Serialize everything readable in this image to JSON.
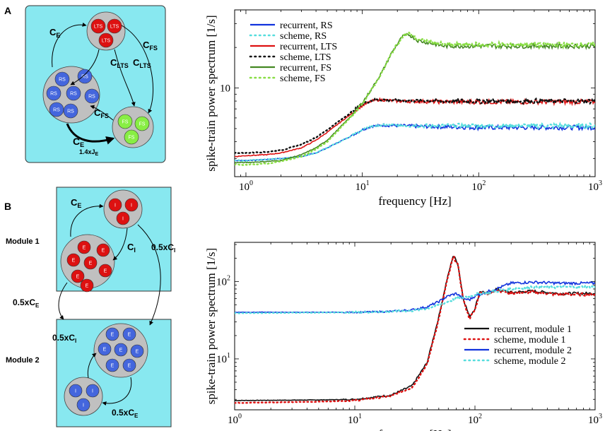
{
  "panel_a": {
    "letter": "A",
    "groups": {
      "lts": {
        "label": "LTS",
        "count": 3
      },
      "rs": {
        "label": "RS",
        "count": 7
      },
      "fs": {
        "label": "FS",
        "count": 3
      }
    },
    "conn": {
      "ce_top": "C",
      "ce_top_sub": "E",
      "cfs_right": "C",
      "cfs_right_sub": "FS",
      "clts_a": "C",
      "clts_a_sub": "LTS",
      "clts_b": "C",
      "clts_b_sub": "LTS",
      "cfs_mid": "C",
      "cfs_mid_sub": "FS",
      "ce_bottom": "C",
      "ce_bottom_sub": "E",
      "je": "1.4xJ",
      "je_sub": "E"
    }
  },
  "panel_b": {
    "letter": "B",
    "module1_label": "Module 1",
    "module2_label": "Module 2",
    "inh_label": "I",
    "exc_label": "E",
    "conn": {
      "ce": "C",
      "ce_sub": "E",
      "ci": "C",
      "ci_sub": "I",
      "half_ci_right": "0.5xC",
      "half_ci_right_sub": "I",
      "half_ce_left": "0.5xC",
      "half_ce_left_sub": "E",
      "half_ci_m2": "0.5xC",
      "half_ci_m2_sub": "I",
      "half_ce_m2": "0.5xC",
      "half_ce_m2_sub": "E"
    }
  },
  "colors": {
    "cyan_panel": "#88e8f0",
    "gray_group": "#c0c0c0",
    "red_node": "#dd1111",
    "blue_node": "#4466dd",
    "green_node": "#88ee44"
  },
  "chart_data": [
    {
      "type": "line",
      "xscale": "log",
      "yscale": "log",
      "xlim": [
        0.8,
        1000
      ],
      "ylim": [
        2.2,
        38
      ],
      "xlabel": "frequency [Hz]",
      "ylabel": "spike-train power spectrum [1/s]",
      "xticks": [
        {
          "v": 1,
          "b": "10",
          "e": "0"
        },
        {
          "v": 10,
          "b": "10",
          "e": "1"
        },
        {
          "v": 100,
          "b": "10",
          "e": "2"
        },
        {
          "v": 1000,
          "b": "10",
          "e": "3"
        }
      ],
      "yticks": [
        {
          "v": 10,
          "label": "10"
        }
      ],
      "legend_position": "top-left",
      "series": [
        {
          "name": "recurrent, RS",
          "color": "#1133dd",
          "style": "solid",
          "pts": [
            [
              0.8,
              2.9
            ],
            [
              1,
              2.9
            ],
            [
              1.5,
              2.95
            ],
            [
              2,
              3.0
            ],
            [
              3,
              3.1
            ],
            [
              4,
              3.3
            ],
            [
              5,
              3.6
            ],
            [
              6,
              3.9
            ],
            [
              8,
              4.4
            ],
            [
              10,
              4.9
            ],
            [
              12,
              5.2
            ],
            [
              15,
              5.3
            ],
            [
              30,
              5.2
            ],
            [
              100,
              5.1
            ],
            [
              1000,
              5.1
            ]
          ]
        },
        {
          "name": "scheme, RS",
          "color": "#55dddd",
          "style": "dotted",
          "pts": [
            [
              0.8,
              2.9
            ],
            [
              1,
              2.9
            ],
            [
              1.5,
              2.95
            ],
            [
              2,
              3.0
            ],
            [
              3,
              3.1
            ],
            [
              4,
              3.3
            ],
            [
              5,
              3.6
            ],
            [
              6,
              3.9
            ],
            [
              8,
              4.4
            ],
            [
              10,
              4.9
            ],
            [
              12,
              5.2
            ],
            [
              15,
              5.3
            ],
            [
              30,
              5.25
            ],
            [
              100,
              5.25
            ],
            [
              1000,
              5.25
            ]
          ]
        },
        {
          "name": "recurrent, LTS",
          "color": "#dd1111",
          "style": "solid",
          "pts": [
            [
              0.8,
              3.1
            ],
            [
              1,
              3.15
            ],
            [
              1.5,
              3.2
            ],
            [
              2,
              3.3
            ],
            [
              3,
              3.6
            ],
            [
              4,
              4.1
            ],
            [
              5,
              4.7
            ],
            [
              6,
              5.3
            ],
            [
              8,
              6.4
            ],
            [
              10,
              7.4
            ],
            [
              12,
              8.0
            ],
            [
              14,
              8.2
            ],
            [
              20,
              8.0
            ],
            [
              50,
              7.9
            ],
            [
              1000,
              7.9
            ]
          ]
        },
        {
          "name": "scheme, LTS",
          "color": "#111111",
          "style": "dotted",
          "pts": [
            [
              0.8,
              3.3
            ],
            [
              1,
              3.3
            ],
            [
              1.5,
              3.35
            ],
            [
              2,
              3.45
            ],
            [
              3,
              3.8
            ],
            [
              4,
              4.3
            ],
            [
              5,
              4.9
            ],
            [
              6,
              5.5
            ],
            [
              8,
              6.6
            ],
            [
              10,
              7.6
            ],
            [
              12,
              8.1
            ],
            [
              14,
              8.2
            ],
            [
              20,
              8.1
            ],
            [
              50,
              8.0
            ],
            [
              1000,
              8.0
            ]
          ]
        },
        {
          "name": "recurrent, FS",
          "color": "#448822",
          "style": "solid",
          "pts": [
            [
              0.8,
              2.8
            ],
            [
              1,
              2.8
            ],
            [
              1.5,
              2.85
            ],
            [
              2,
              2.9
            ],
            [
              3,
              3.2
            ],
            [
              4,
              3.6
            ],
            [
              5,
              4.1
            ],
            [
              6,
              4.8
            ],
            [
              8,
              6.2
            ],
            [
              10,
              7.8
            ],
            [
              12,
              9.8
            ],
            [
              15,
              13.5
            ],
            [
              18,
              18.5
            ],
            [
              22,
              24
            ],
            [
              25,
              25
            ],
            [
              30,
              22.5
            ],
            [
              50,
              20.5
            ],
            [
              100,
              20.5
            ],
            [
              1000,
              20.5
            ]
          ]
        },
        {
          "name": "scheme, FS",
          "color": "#88dd44",
          "style": "dotted",
          "pts": [
            [
              0.8,
              2.7
            ],
            [
              1,
              2.7
            ],
            [
              1.5,
              2.75
            ],
            [
              2,
              2.85
            ],
            [
              3,
              3.1
            ],
            [
              4,
              3.5
            ],
            [
              5,
              4.0
            ],
            [
              6,
              4.7
            ],
            [
              8,
              6.1
            ],
            [
              10,
              7.7
            ],
            [
              12,
              9.7
            ],
            [
              15,
              13.4
            ],
            [
              18,
              18.4
            ],
            [
              22,
              24
            ],
            [
              25,
              25.5
            ],
            [
              30,
              23
            ],
            [
              50,
              21
            ],
            [
              100,
              21
            ],
            [
              1000,
              21
            ]
          ]
        }
      ]
    },
    {
      "type": "line",
      "xscale": "log",
      "yscale": "log",
      "xlim": [
        1,
        1000
      ],
      "ylim": [
        2.2,
        320
      ],
      "xlabel": "frequency [Hz]",
      "ylabel": "spike-train power spectrum [1/s]",
      "xticks": [
        {
          "v": 1,
          "b": "10",
          "e": "0"
        },
        {
          "v": 10,
          "b": "10",
          "e": "1"
        },
        {
          "v": 100,
          "b": "10",
          "e": "2"
        },
        {
          "v": 1000,
          "b": "10",
          "e": "3"
        }
      ],
      "yticks": [
        {
          "v": 10,
          "b": "10",
          "e": "1"
        },
        {
          "v": 100,
          "b": "10",
          "e": "2"
        }
      ],
      "legend_position": "bottom-right",
      "series": [
        {
          "name": "recurrent, module 1",
          "color": "#111111",
          "style": "solid",
          "pts": [
            [
              1,
              2.9
            ],
            [
              5,
              2.95
            ],
            [
              10,
              3.0
            ],
            [
              20,
              3.4
            ],
            [
              30,
              4.5
            ],
            [
              40,
              9
            ],
            [
              50,
              35
            ],
            [
              58,
              100
            ],
            [
              66,
              220
            ],
            [
              72,
              170
            ],
            [
              80,
              60
            ],
            [
              90,
              35
            ],
            [
              100,
              45
            ],
            [
              110,
              75
            ],
            [
              130,
              70
            ],
            [
              150,
              80
            ],
            [
              200,
              72
            ],
            [
              300,
              75
            ],
            [
              500,
              70
            ],
            [
              1000,
              70
            ]
          ]
        },
        {
          "name": "scheme, module 1",
          "color": "#dd1111",
          "style": "dotted",
          "pts": [
            [
              1,
              2.7
            ],
            [
              5,
              2.8
            ],
            [
              10,
              2.9
            ],
            [
              20,
              3.3
            ],
            [
              30,
              4.3
            ],
            [
              40,
              8.5
            ],
            [
              50,
              33
            ],
            [
              58,
              95
            ],
            [
              66,
              210
            ],
            [
              72,
              165
            ],
            [
              80,
              58
            ],
            [
              90,
              33
            ],
            [
              100,
              43
            ],
            [
              110,
              73
            ],
            [
              130,
              68
            ],
            [
              150,
              78
            ],
            [
              200,
              70
            ],
            [
              300,
              73
            ],
            [
              500,
              68
            ],
            [
              1000,
              68
            ]
          ]
        },
        {
          "name": "recurrent, module 2",
          "color": "#1133dd",
          "style": "solid",
          "pts": [
            [
              1,
              40
            ],
            [
              10,
              40
            ],
            [
              20,
              41
            ],
            [
              30,
              43
            ],
            [
              40,
              47
            ],
            [
              50,
              55
            ],
            [
              60,
              65
            ],
            [
              70,
              70
            ],
            [
              80,
              60
            ],
            [
              90,
              58
            ],
            [
              100,
              65
            ],
            [
              150,
              80
            ],
            [
              200,
              95
            ],
            [
              300,
              98
            ],
            [
              500,
              95
            ],
            [
              1000,
              95
            ]
          ]
        },
        {
          "name": "scheme, module 2",
          "color": "#55dddd",
          "style": "dotted",
          "pts": [
            [
              1,
              39
            ],
            [
              10,
              40
            ],
            [
              20,
              41
            ],
            [
              30,
              42
            ],
            [
              40,
              45
            ],
            [
              50,
              50
            ],
            [
              60,
              55
            ],
            [
              70,
              60
            ],
            [
              80,
              62
            ],
            [
              100,
              68
            ],
            [
              150,
              75
            ],
            [
              200,
              80
            ],
            [
              300,
              85
            ],
            [
              500,
              85
            ],
            [
              1000,
              85
            ]
          ]
        }
      ]
    }
  ]
}
